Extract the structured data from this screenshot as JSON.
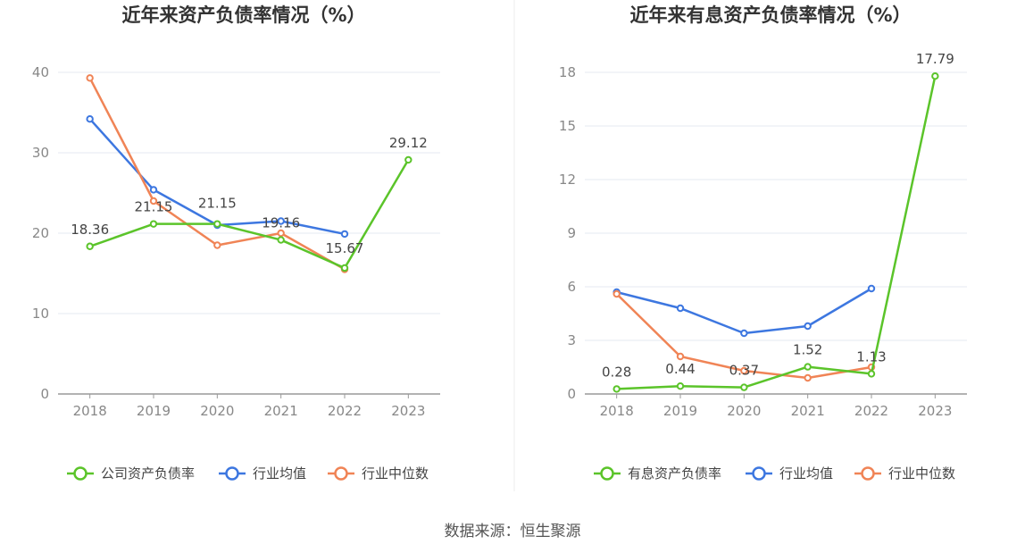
{
  "chart_data": [
    {
      "type": "line",
      "title": "近年来资产负债率情况（%）",
      "categories": [
        "2018",
        "2019",
        "2020",
        "2021",
        "2022",
        "2023"
      ],
      "y_ticks": [
        "0",
        "10",
        "20",
        "30",
        "40"
      ],
      "ylim": [
        0,
        40
      ],
      "grid": true,
      "legend_position": "bottom",
      "series": [
        {
          "name": "公司资产负债率",
          "color": "#5bc42a",
          "values": [
            18.36,
            21.15,
            21.15,
            19.16,
            15.67,
            29.12
          ],
          "labels": [
            "18.36",
            "21.15",
            "21.15",
            "19.16",
            "15.67",
            "29.12"
          ]
        },
        {
          "name": "行业均值",
          "color": "#3d77e0",
          "values": [
            34.2,
            25.4,
            21.0,
            21.5,
            19.9,
            null
          ]
        },
        {
          "name": "行业中位数",
          "color": "#f08456",
          "values": [
            39.3,
            24.0,
            18.5,
            20.0,
            15.5,
            null
          ]
        }
      ]
    },
    {
      "type": "line",
      "title": "近年来有息资产负债率情况（%）",
      "categories": [
        "2018",
        "2019",
        "2020",
        "2021",
        "2022",
        "2023"
      ],
      "y_ticks": [
        "0",
        "3",
        "6",
        "9",
        "12",
        "15",
        "18"
      ],
      "ylim": [
        0,
        18
      ],
      "grid": true,
      "legend_position": "bottom",
      "series": [
        {
          "name": "有息资产负债率",
          "color": "#5bc42a",
          "values": [
            0.28,
            0.44,
            0.37,
            1.52,
            1.13,
            17.79
          ],
          "labels": [
            "0.28",
            "0.44",
            "0.37",
            "1.52",
            "1.13",
            "17.79"
          ]
        },
        {
          "name": "行业均值",
          "color": "#3d77e0",
          "values": [
            5.7,
            4.8,
            3.4,
            3.8,
            5.9,
            null
          ]
        },
        {
          "name": "行业中位数",
          "color": "#f08456",
          "values": [
            5.6,
            2.1,
            1.3,
            0.9,
            1.5,
            null
          ]
        }
      ]
    }
  ],
  "footer": {
    "source": "数据来源：恒生聚源"
  }
}
